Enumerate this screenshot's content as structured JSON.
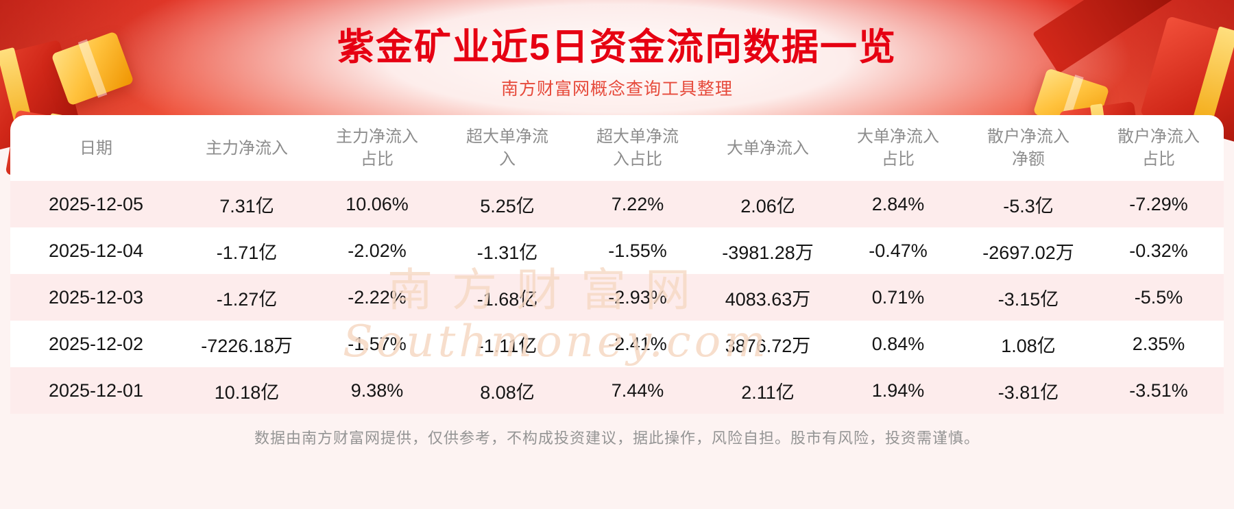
{
  "chart_data": {
    "type": "table",
    "title": "紫金矿业近5日资金流向数据一览",
    "subtitle": "南方财富网概念查询工具整理",
    "columns": [
      "日期",
      "主力净流入",
      "主力净流入\n占比",
      "超大单净流\n入",
      "超大单净流\n入占比",
      "大单净流入",
      "大单净流入\n占比",
      "散户净流入\n净额",
      "散户净流入\n占比"
    ],
    "rows": [
      [
        "2025-12-05",
        "7.31亿",
        "10.06%",
        "5.25亿",
        "7.22%",
        "2.06亿",
        "2.84%",
        "-5.3亿",
        "-7.29%"
      ],
      [
        "2025-12-04",
        "-1.71亿",
        "-2.02%",
        "-1.31亿",
        "-1.55%",
        "-3981.28万",
        "-0.47%",
        "-2697.02万",
        "-0.32%"
      ],
      [
        "2025-12-03",
        "-1.27亿",
        "-2.22%",
        "-1.68亿",
        "-2.93%",
        "4083.63万",
        "0.71%",
        "-3.15亿",
        "-5.5%"
      ],
      [
        "2025-12-02",
        "-7226.18万",
        "-1.57%",
        "-1.11亿",
        "-2.41%",
        "3876.72万",
        "0.84%",
        "1.08亿",
        "2.35%"
      ],
      [
        "2025-12-01",
        "10.18亿",
        "9.38%",
        "8.08亿",
        "7.44%",
        "2.11亿",
        "1.94%",
        "-3.81亿",
        "-3.51%"
      ]
    ]
  },
  "watermark": {
    "cn": "南方财富网",
    "en": "Southmoney.com"
  },
  "footer": {
    "disclaimer": "数据由南方财富网提供，仅供参考，不构成投资建议，据此操作，风险自担。股市有风险，投资需谨慎。"
  },
  "colors": {
    "accent_red": "#e63a2b",
    "title_red": "#e60012",
    "row_pink": "#fdecec",
    "header_gray": "#8d8d8d",
    "text_dark": "#141414",
    "gold": "#f2a50a",
    "page_bg": "#fdf3f2",
    "watermark_color": "#f6d9c4",
    "footer_gray": "#949494"
  }
}
